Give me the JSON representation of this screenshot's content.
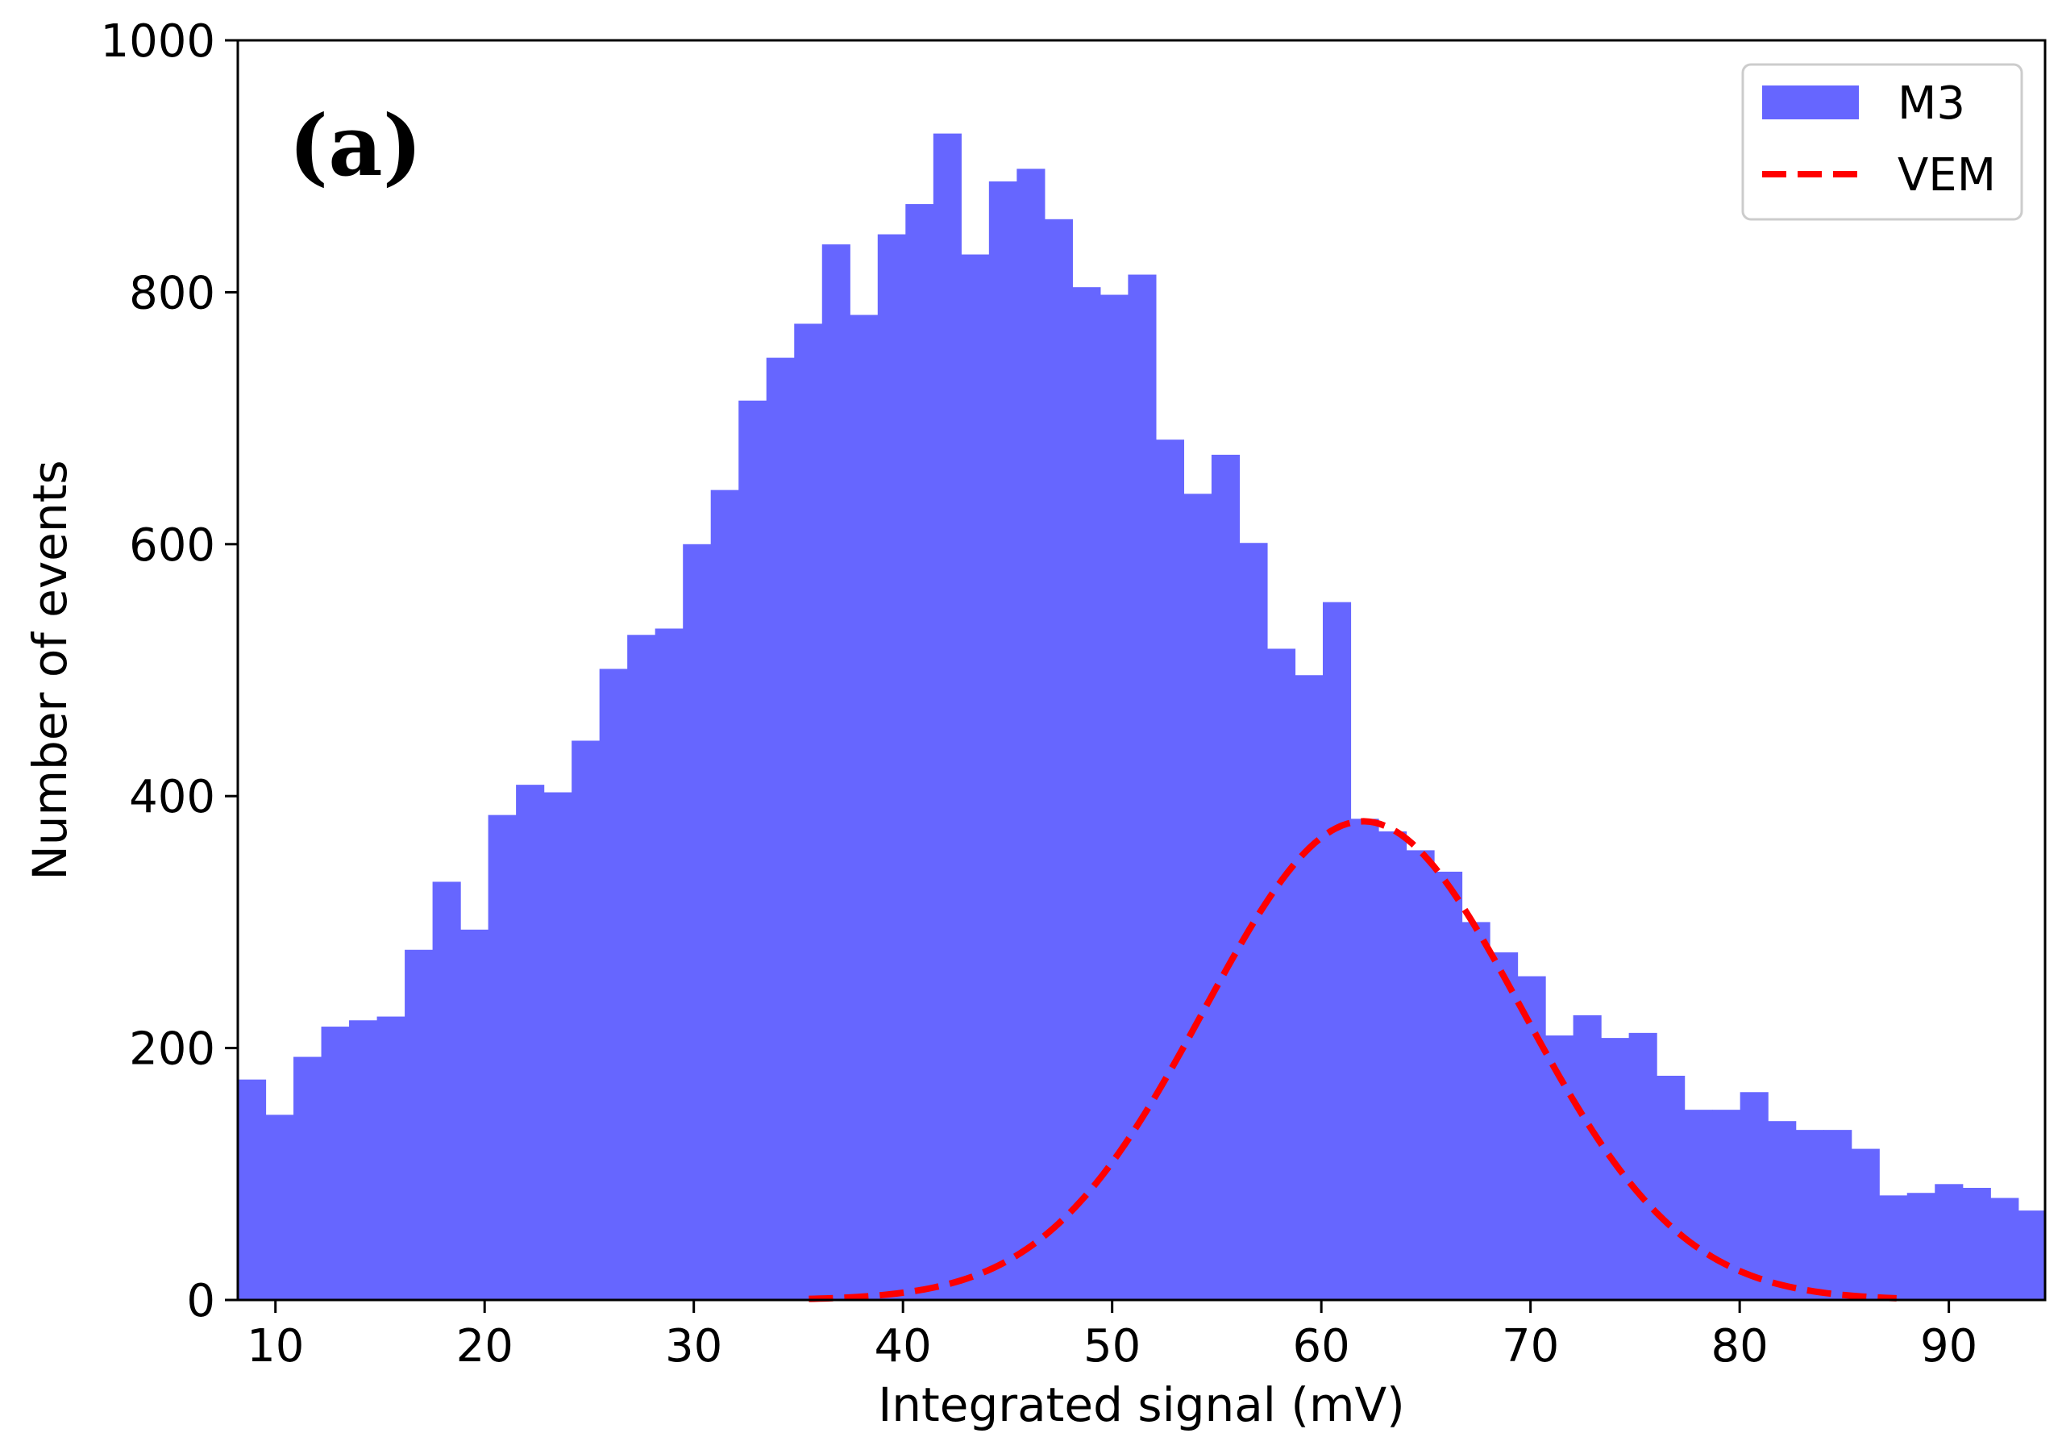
{
  "colors": {
    "histogram": "#6666ff",
    "curve": "#ff0000",
    "axis": "#000000",
    "legend_border": "#cccccc"
  },
  "panel_label": "(a)",
  "chart_data": {
    "type": "bar",
    "title": "",
    "xlabel": "Integrated signal (mV)",
    "ylabel": "Number of events",
    "xlim": [
      8.2,
      94.6
    ],
    "ylim": [
      0,
      1000
    ],
    "xticks": [
      10,
      20,
      30,
      40,
      50,
      60,
      70,
      80,
      90
    ],
    "yticks": [
      0,
      200,
      400,
      600,
      800,
      1000
    ],
    "grid": false,
    "legend_position": "top-right",
    "legend": [
      "M3",
      "VEM"
    ],
    "series": [
      {
        "name": "M3",
        "kind": "histogram",
        "bin_start": 8.2,
        "bin_width": 1.33,
        "counts": [
          175,
          147,
          193,
          217,
          222,
          225,
          278,
          332,
          294,
          385,
          409,
          403,
          444,
          501,
          528,
          533,
          600,
          643,
          714,
          748,
          775,
          838,
          782,
          846,
          870,
          926,
          830,
          888,
          898,
          858,
          804,
          798,
          814,
          683,
          640,
          671,
          601,
          517,
          496,
          554,
          382,
          372,
          357,
          340,
          300,
          276,
          257,
          210,
          226,
          208,
          212,
          178,
          151,
          151,
          165,
          142,
          135,
          135,
          120,
          83,
          85,
          92,
          89,
          81,
          71
        ]
      },
      {
        "name": "VEM",
        "kind": "gaussian_curve",
        "x_range": [
          35.5,
          87.5
        ],
        "amplitude": 380,
        "mean": 62,
        "sigma": 7.6
      }
    ]
  }
}
